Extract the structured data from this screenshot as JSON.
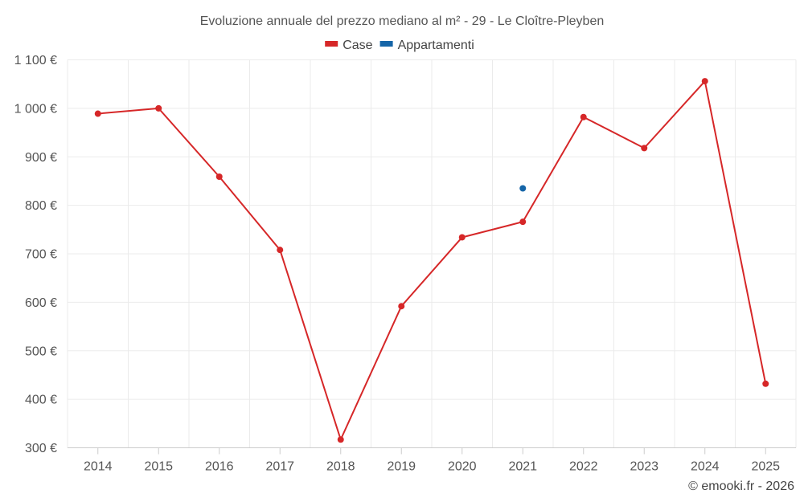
{
  "chart_data": {
    "type": "line",
    "title": "Evoluzione annuale del prezzo mediano al m² - 29 - Le Cloître-Pleyben",
    "categories": [
      "2014",
      "2015",
      "2016",
      "2017",
      "2018",
      "2019",
      "2020",
      "2021",
      "2022",
      "2023",
      "2024",
      "2025"
    ],
    "ylim": [
      300,
      1100
    ],
    "yticks": [
      300,
      400,
      500,
      600,
      700,
      800,
      900,
      1000,
      1100
    ],
    "ytick_labels": [
      "300 €",
      "400 €",
      "500 €",
      "600 €",
      "700 €",
      "800 €",
      "900 €",
      "1 000 €",
      "1 100 €"
    ],
    "xlabel": "",
    "ylabel": "",
    "grid": true,
    "legend_position": "top-center",
    "series": [
      {
        "name": "Case",
        "color": "#d62728",
        "values": [
          989,
          1000,
          859,
          708,
          317,
          592,
          734,
          766,
          982,
          918,
          1056,
          432
        ]
      },
      {
        "name": "Appartamenti",
        "color": "#1565a8",
        "values": [
          null,
          null,
          null,
          null,
          null,
          null,
          null,
          835,
          null,
          null,
          null,
          null
        ]
      }
    ]
  },
  "credit": "© emooki.fr - 2026"
}
